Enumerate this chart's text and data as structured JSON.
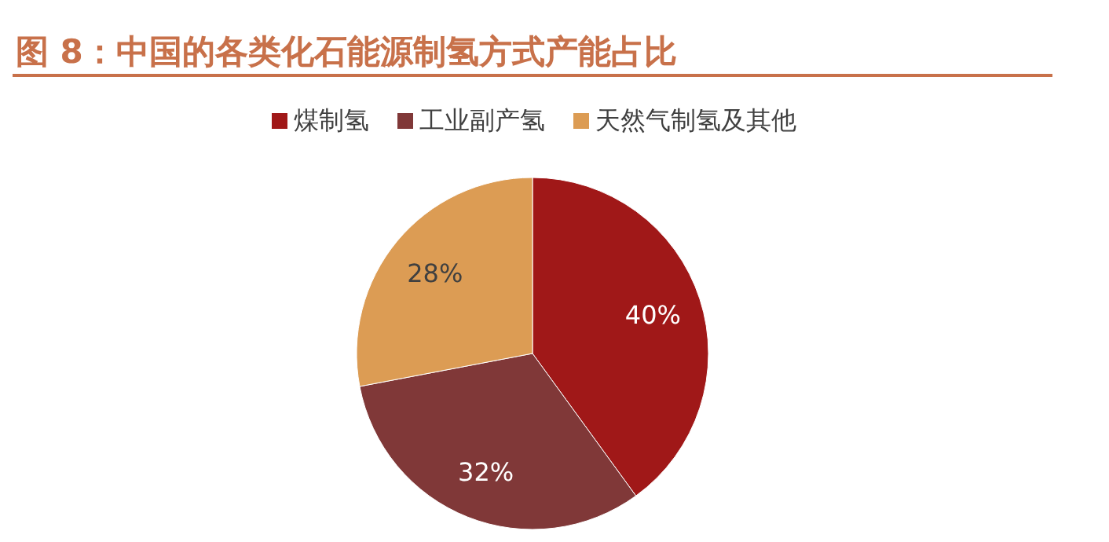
{
  "chart_data": {
    "type": "pie",
    "title": "图 8：中国的各类化石能源制氢方式产能占比",
    "categories": [
      "煤制氢",
      "工业副产氢",
      "天然气制氢及其他"
    ],
    "values": [
      40,
      32,
      28
    ],
    "colors": [
      "#a01818",
      "#803838",
      "#dc9c54"
    ],
    "value_labels": [
      "40%",
      "32%",
      "28%"
    ],
    "legend": "top"
  }
}
